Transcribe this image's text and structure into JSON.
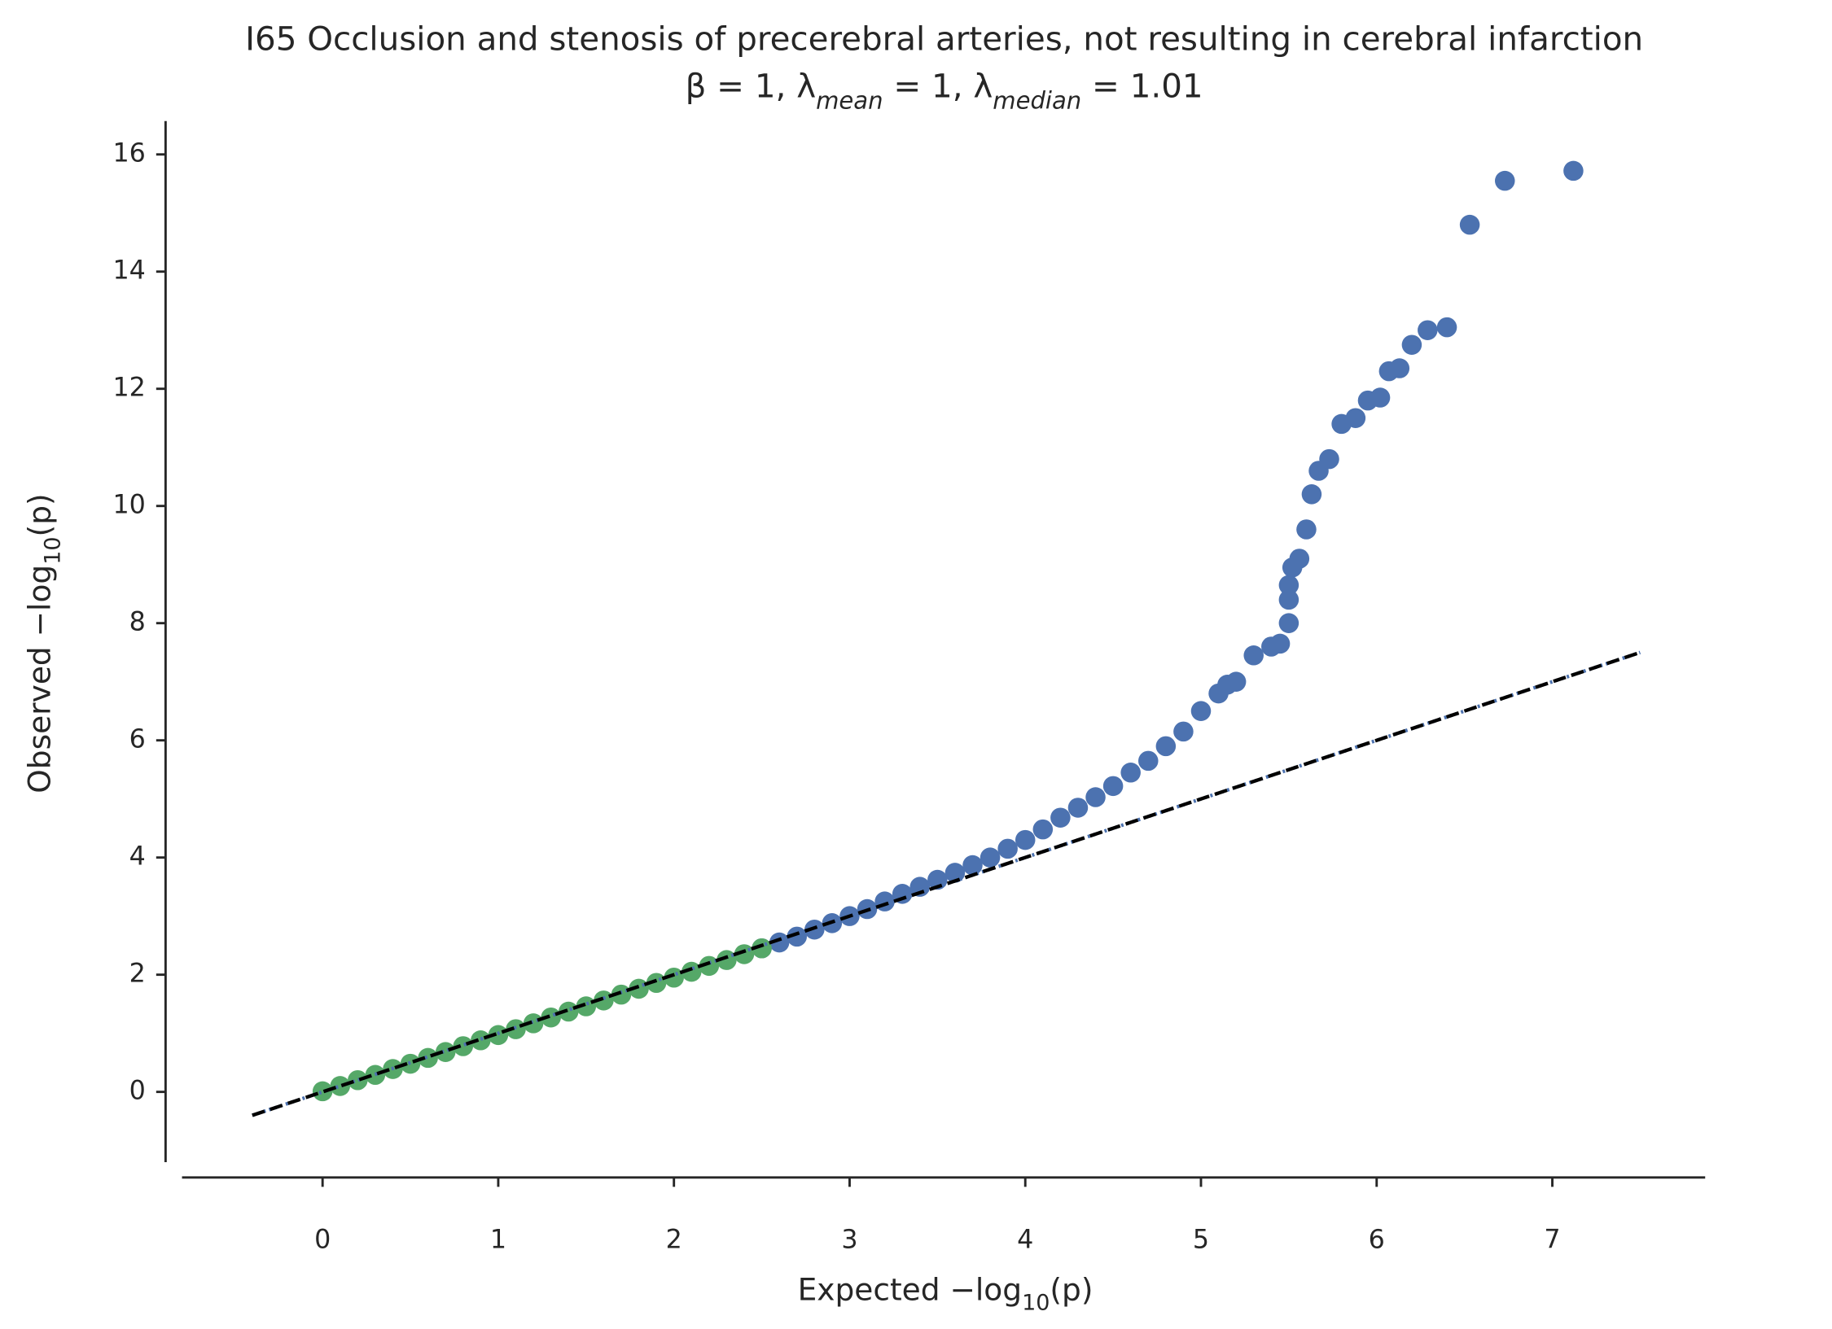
{
  "chart_data": {
    "type": "scatter",
    "title": "I65 Occlusion and stenosis of precerebral arteries, not resulting in cerebral infarction",
    "subtitle": [
      {
        "text": "β = 1, λ"
      },
      {
        "sub": "mean"
      },
      {
        "text": " = 1, λ"
      },
      {
        "sub": "median"
      },
      {
        "text": " = 1.01"
      }
    ],
    "x_label": [
      {
        "text": "Expected −log"
      },
      {
        "sub": "10"
      },
      {
        "text": "(p)"
      }
    ],
    "y_label": [
      {
        "text": "Observed −log"
      },
      {
        "sub": "10"
      },
      {
        "text": "(p)"
      }
    ],
    "xlim": [
      -0.8,
      7.87
    ],
    "ylim": [
      -1.2,
      16.57
    ],
    "xticks": [
      0,
      1,
      2,
      3,
      4,
      5,
      6,
      7
    ],
    "yticks": [
      0,
      2,
      4,
      6,
      8,
      10,
      12,
      14,
      16
    ],
    "reference_line": {
      "x": [
        -0.4,
        7.5
      ],
      "values": [
        -0.4,
        7.5
      ],
      "color": "#000000",
      "under_color": "#4c72b0"
    },
    "series": [
      {
        "color": "#4c72b0",
        "x": [
          2.5,
          2.6,
          2.7,
          2.8,
          2.9,
          3.0,
          3.1,
          3.2,
          3.3,
          3.4,
          3.5,
          3.6,
          3.7,
          3.8,
          3.9,
          4.0,
          4.1,
          4.2,
          4.3,
          4.4,
          4.5,
          4.6,
          4.7,
          4.8,
          4.9,
          5.0,
          5.1,
          5.15,
          5.2,
          5.3,
          5.4,
          5.45,
          5.5,
          5.5,
          5.5,
          5.52,
          5.56,
          5.6,
          5.63,
          5.67,
          5.73,
          5.8,
          5.88,
          5.95,
          6.02,
          6.07,
          6.13,
          6.2,
          6.29,
          6.4,
          6.53,
          6.73,
          7.12
        ],
        "values": [
          2.45,
          2.55,
          2.65,
          2.77,
          2.88,
          3.0,
          3.12,
          3.25,
          3.38,
          3.5,
          3.62,
          3.74,
          3.87,
          4.0,
          4.15,
          4.3,
          4.48,
          4.68,
          4.85,
          5.03,
          5.22,
          5.45,
          5.65,
          5.9,
          6.15,
          6.5,
          6.8,
          6.95,
          7.0,
          7.45,
          7.6,
          7.65,
          8.0,
          8.4,
          8.65,
          8.95,
          9.1,
          9.6,
          10.2,
          10.6,
          10.8,
          11.4,
          11.5,
          11.8,
          11.85,
          12.3,
          12.35,
          12.75,
          13.0,
          13.05,
          14.8,
          15.55,
          15.72
        ]
      },
      {
        "color": "#55a868",
        "x": [
          0,
          0.1,
          0.2,
          0.3,
          0.4,
          0.5,
          0.6,
          0.7,
          0.8,
          0.9,
          1.0,
          1.1,
          1.2,
          1.3,
          1.4,
          1.5,
          1.6,
          1.7,
          1.8,
          1.9,
          2.0,
          2.1,
          2.2,
          2.3,
          2.4,
          2.5
        ],
        "values": [
          0.01,
          0.1,
          0.2,
          0.29,
          0.39,
          0.48,
          0.58,
          0.68,
          0.78,
          0.88,
          0.97,
          1.07,
          1.17,
          1.27,
          1.37,
          1.46,
          1.56,
          1.66,
          1.76,
          1.86,
          1.95,
          2.05,
          2.15,
          2.25,
          2.35,
          2.45
        ]
      }
    ]
  }
}
